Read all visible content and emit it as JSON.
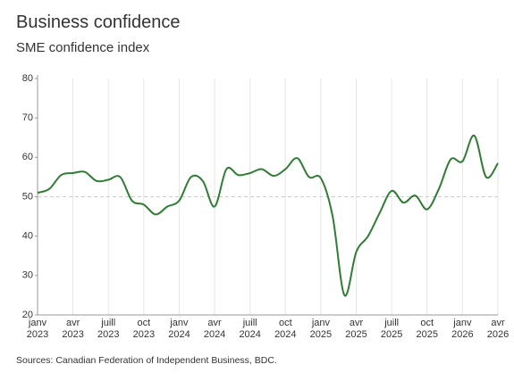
{
  "chart_data": {
    "type": "line",
    "title": "Business confidence",
    "subtitle": "SME confidence index",
    "source": "Sources: Canadian Federation of Independent Business, BDC.",
    "categories": [
      "janv 2023",
      null,
      null,
      "avr 2023",
      null,
      null,
      "juill 2023",
      null,
      null,
      "oct 2023",
      null,
      null,
      "janv 2024",
      null,
      null,
      "avr 2024",
      null,
      null,
      "juill 2024",
      null,
      null,
      "oct 2024",
      null,
      null,
      "janv 2025",
      null,
      null,
      "avr 2025",
      null,
      null,
      "juill 2025",
      null,
      null,
      "oct 2025",
      null,
      null,
      "janv 2026",
      null,
      null,
      "avr 2026"
    ],
    "values": [
      51,
      52,
      55.5,
      56,
      56.3,
      54,
      54.3,
      55,
      49,
      48,
      45.5,
      47.5,
      49,
      55,
      54,
      47.5,
      57,
      55.5,
      56,
      57,
      55.3,
      57,
      59.8,
      55,
      54.7,
      45,
      25,
      36,
      40,
      46,
      51.5,
      48.5,
      50.3,
      46.8,
      52,
      59.5,
      59,
      65.5,
      55,
      58.5
    ],
    "color": "#2e7d32",
    "ylim": [
      20,
      80
    ],
    "yticks": [
      20,
      30,
      40,
      50,
      60,
      70,
      80
    ],
    "reference_line": 50,
    "grid": true
  }
}
